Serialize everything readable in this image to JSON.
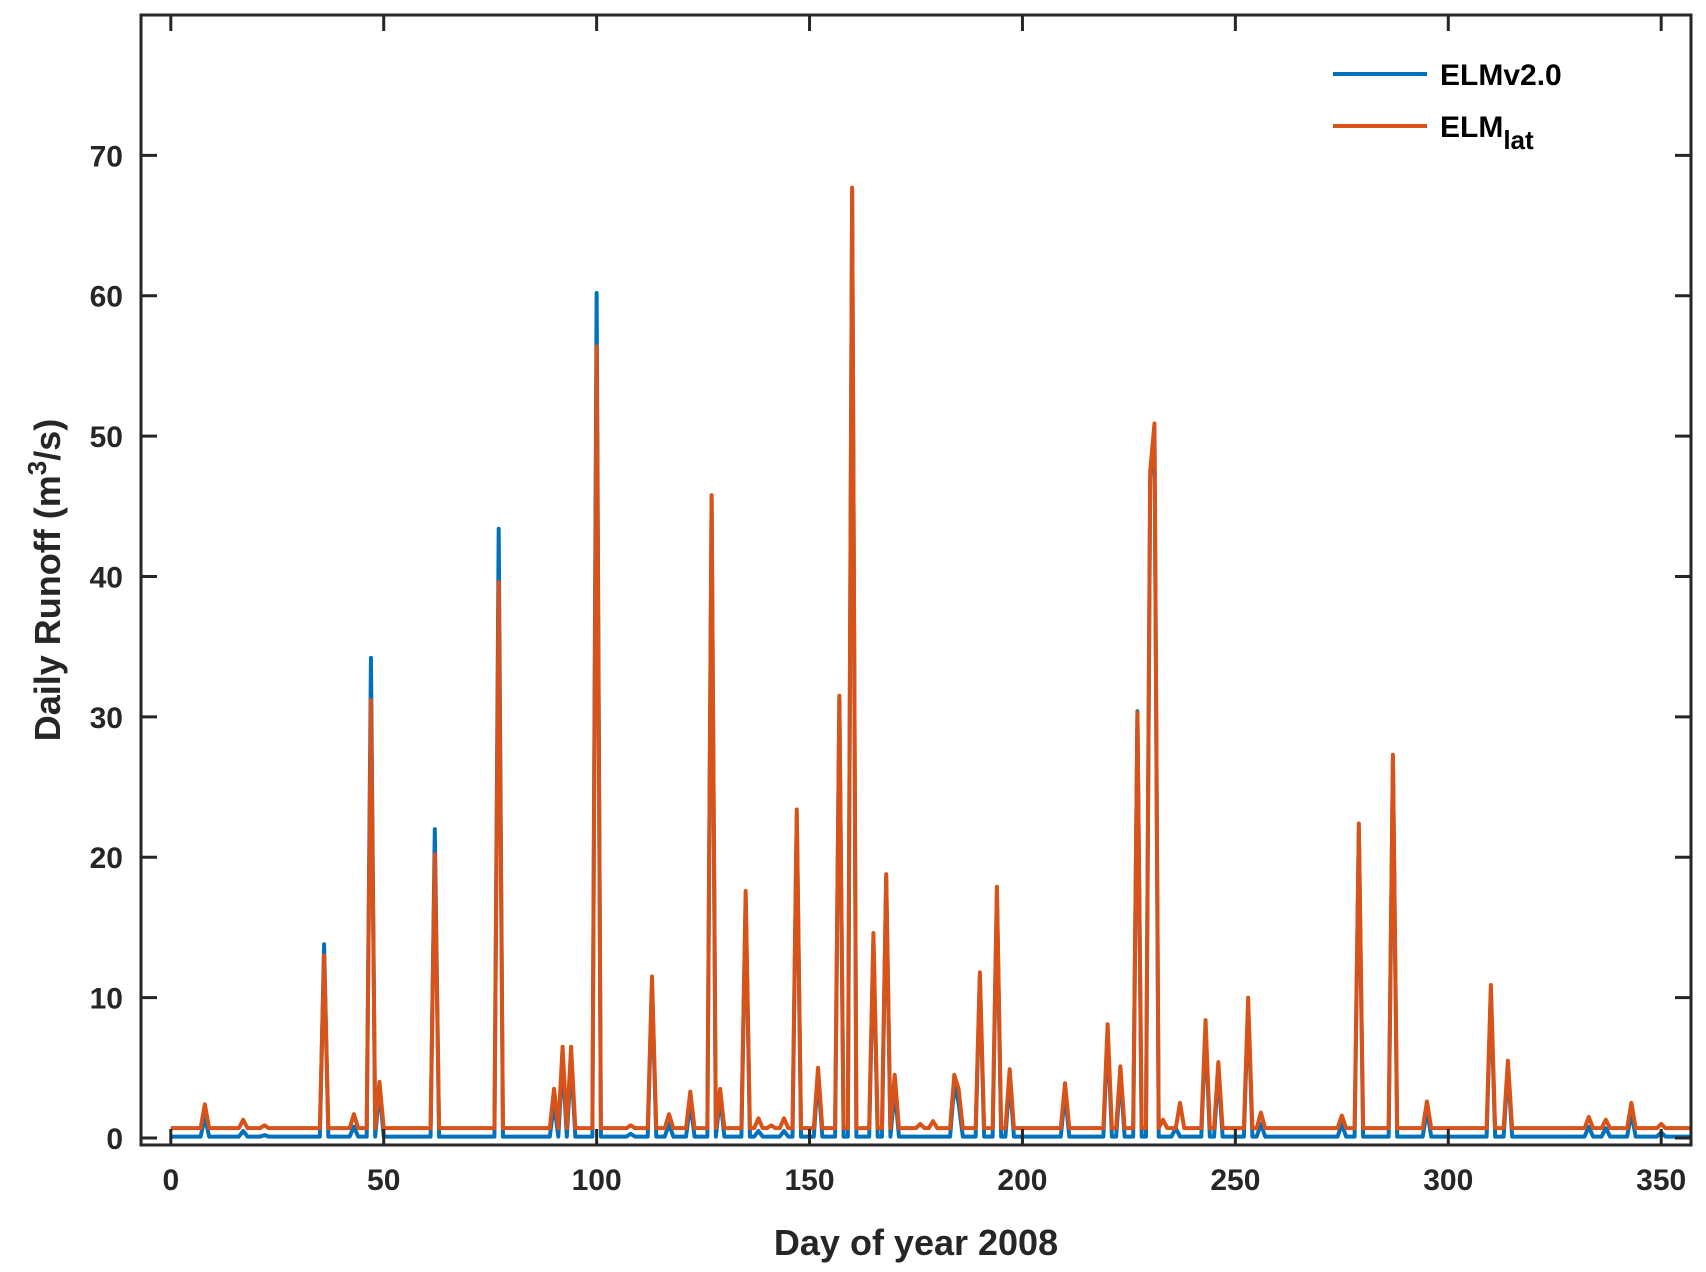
{
  "chart_data": {
    "type": "line",
    "xlabel": "Day of year 2008",
    "ylabel_main": "Daily Runoff (m",
    "ylabel_sup": "3",
    "ylabel_tail": "/s)",
    "xlim": [
      -7,
      357
    ],
    "ylim": [
      -0.5,
      80
    ],
    "x_ticks": [
      0,
      50,
      100,
      150,
      200,
      250,
      300,
      350
    ],
    "y_ticks": [
      0,
      10,
      20,
      30,
      40,
      50,
      60,
      70
    ],
    "grid": false,
    "legend_position": "top-right",
    "baseline": {
      "ELMv2.0": 0.1,
      "ELMlat": 0.7
    },
    "series": [
      {
        "name": "ELMv2.0",
        "legend_main": "ELMv2.0",
        "legend_sub": "",
        "color": "#0072BD",
        "peaks": [
          [
            8,
            1.5
          ],
          [
            17,
            0.5
          ],
          [
            22,
            0.2
          ],
          [
            36,
            13.8
          ],
          [
            43,
            0.8
          ],
          [
            47,
            34.2
          ],
          [
            49,
            3.5
          ],
          [
            62,
            22.0
          ],
          [
            77,
            43.4
          ],
          [
            90,
            2.5
          ],
          [
            92,
            5.5
          ],
          [
            94,
            5.5
          ],
          [
            100,
            60.2
          ],
          [
            108,
            0.3
          ],
          [
            113,
            11.0
          ],
          [
            117,
            1.0
          ],
          [
            122,
            2.5
          ],
          [
            127,
            45.5
          ],
          [
            129,
            3.0
          ],
          [
            135,
            17.0
          ],
          [
            138,
            0.5
          ],
          [
            144,
            0.5
          ],
          [
            147,
            23.0
          ],
          [
            152,
            4.5
          ],
          [
            157,
            31.2
          ],
          [
            160,
            67.5
          ],
          [
            165,
            14.0
          ],
          [
            168,
            18.5
          ],
          [
            170,
            3.5
          ],
          [
            184,
            3.8
          ],
          [
            185,
            2.5
          ],
          [
            190,
            11.5
          ],
          [
            194,
            17.5
          ],
          [
            197,
            4.2
          ],
          [
            210,
            3.2
          ],
          [
            220,
            7.5
          ],
          [
            223,
            4.5
          ],
          [
            227,
            30.4
          ],
          [
            230,
            47.0
          ],
          [
            231,
            50.5
          ],
          [
            236,
            0.7
          ],
          [
            243,
            7.8
          ],
          [
            246,
            4.8
          ],
          [
            253,
            9.5
          ],
          [
            256,
            1.0
          ],
          [
            275,
            1.0
          ],
          [
            279,
            22.0
          ],
          [
            287,
            27.0
          ],
          [
            295,
            2.0
          ],
          [
            310,
            10.5
          ],
          [
            314,
            5.0
          ],
          [
            333,
            0.8
          ],
          [
            337,
            0.7
          ],
          [
            343,
            1.8
          ],
          [
            350,
            0.4
          ]
        ]
      },
      {
        "name": "ELMlat",
        "legend_main": "ELM",
        "legend_sub": "lat",
        "color": "#D95319",
        "peaks": [
          [
            8,
            2.4
          ],
          [
            17,
            1.3
          ],
          [
            22,
            0.9
          ],
          [
            36,
            13.0
          ],
          [
            43,
            1.7
          ],
          [
            47,
            31.2
          ],
          [
            49,
            4.0
          ],
          [
            62,
            20.2
          ],
          [
            77,
            39.6
          ],
          [
            90,
            3.5
          ],
          [
            92,
            6.5
          ],
          [
            94,
            6.5
          ],
          [
            100,
            56.4
          ],
          [
            108,
            0.9
          ],
          [
            113,
            11.5
          ],
          [
            117,
            1.7
          ],
          [
            122,
            3.3
          ],
          [
            127,
            45.8
          ],
          [
            129,
            3.5
          ],
          [
            135,
            17.6
          ],
          [
            138,
            1.4
          ],
          [
            141,
            0.9
          ],
          [
            144,
            1.4
          ],
          [
            147,
            23.4
          ],
          [
            152,
            5.0
          ],
          [
            157,
            31.5
          ],
          [
            160,
            67.7
          ],
          [
            165,
            14.6
          ],
          [
            168,
            18.8
          ],
          [
            170,
            4.5
          ],
          [
            176,
            1.0
          ],
          [
            179,
            1.2
          ],
          [
            184,
            4.5
          ],
          [
            185,
            3.5
          ],
          [
            190,
            11.8
          ],
          [
            194,
            17.9
          ],
          [
            197,
            4.9
          ],
          [
            210,
            3.9
          ],
          [
            220,
            8.1
          ],
          [
            223,
            5.1
          ],
          [
            227,
            30.3
          ],
          [
            230,
            47.5
          ],
          [
            231,
            50.9
          ],
          [
            233,
            1.3
          ],
          [
            237,
            2.5
          ],
          [
            243,
            8.4
          ],
          [
            246,
            5.4
          ],
          [
            253,
            10.0
          ],
          [
            256,
            1.8
          ],
          [
            275,
            1.6
          ],
          [
            279,
            22.4
          ],
          [
            287,
            27.3
          ],
          [
            295,
            2.6
          ],
          [
            310,
            10.9
          ],
          [
            314,
            5.5
          ],
          [
            333,
            1.5
          ],
          [
            337,
            1.3
          ],
          [
            343,
            2.5
          ],
          [
            350,
            1.0
          ]
        ]
      }
    ]
  }
}
